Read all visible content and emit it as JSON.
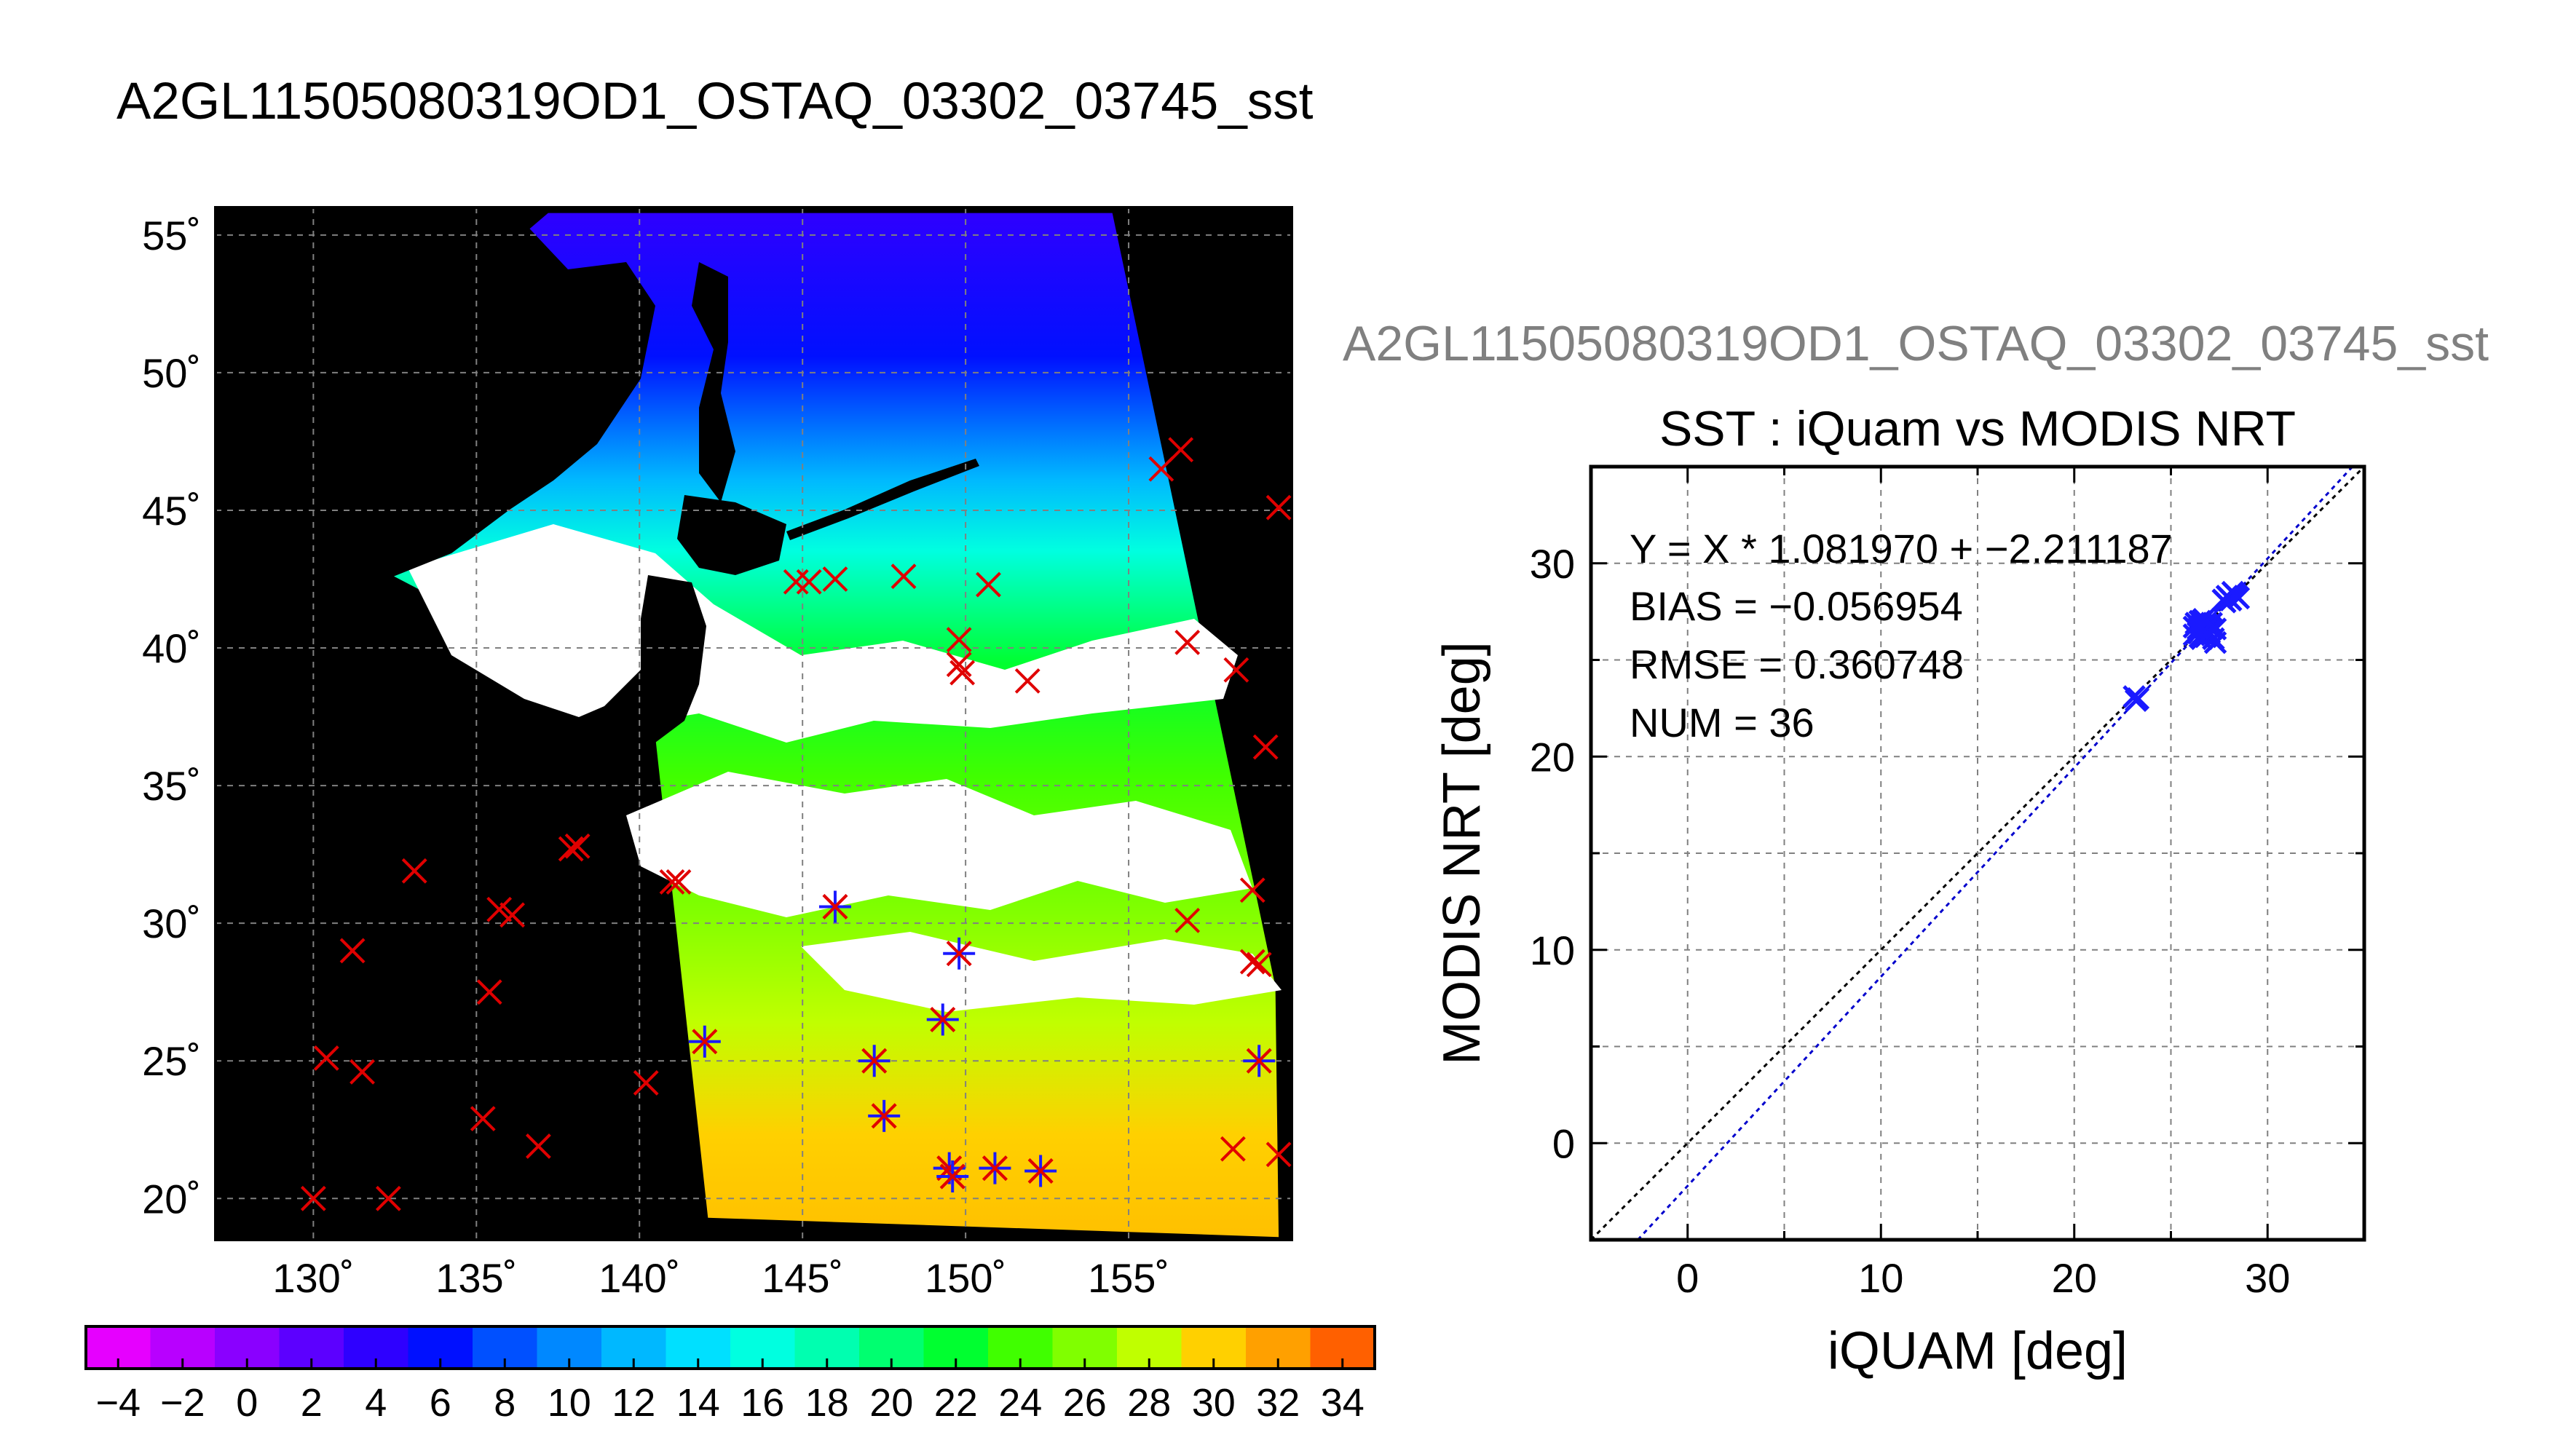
{
  "title": "A2GL11505080319OD1_OSTAQ_03302_03745_sst",
  "colors": {
    "background": "#ffffff",
    "land": "#000000",
    "cloud": "#ffffff",
    "insitu_marker": "#e00000",
    "matchup_marker": "#1a1aff",
    "fit_line": "#0000cc",
    "identity_line": "#000000",
    "grid": "#7f7f7f"
  },
  "chart_data": [
    {
      "type": "heatmap",
      "description_kind": "sst-map",
      "xlabel": "",
      "ylabel": "",
      "xlim": [
        127,
        160
      ],
      "ylim": [
        18.5,
        56
      ],
      "x_ticks": [
        130,
        135,
        140,
        145,
        150,
        155
      ],
      "y_ticks": [
        20,
        25,
        30,
        35,
        40,
        45,
        50,
        55
      ],
      "x_tick_labels": [
        "130˚",
        "135˚",
        "140˚",
        "145˚",
        "150˚",
        "155˚"
      ],
      "y_tick_labels": [
        "20˚",
        "25˚",
        "30˚",
        "35˚",
        "40˚",
        "45˚",
        "50˚",
        "55˚"
      ],
      "grid": true,
      "swath": [
        [
          127.3,
          45.8
        ],
        [
          140.4,
          37.7
        ],
        [
          142.1,
          19.3
        ],
        [
          159.6,
          18.6
        ],
        [
          159.5,
          27.7
        ],
        [
          154.5,
          55.8
        ],
        [
          137.2,
          55.8
        ]
      ],
      "colorbar": {
        "min": -5,
        "max": 35,
        "step": 2,
        "tick_values": [
          -4,
          -2,
          0,
          2,
          4,
          6,
          8,
          10,
          12,
          14,
          16,
          18,
          20,
          22,
          24,
          26,
          28,
          30,
          32,
          34
        ],
        "tick_labels": [
          "−4",
          "−2",
          "0",
          "2",
          "4",
          "6",
          "8",
          "10",
          "12",
          "14",
          "16",
          "18",
          "20",
          "22",
          "24",
          "26",
          "28",
          "30",
          "32",
          "34"
        ],
        "colors": [
          "#e600ff",
          "#b800ff",
          "#8a00ff",
          "#5c00ff",
          "#2e00ff",
          "#0010ff",
          "#0050ff",
          "#0088ff",
          "#00b8ff",
          "#00e0ff",
          "#00ffe0",
          "#00ffb0",
          "#00ff70",
          "#00ff30",
          "#40ff00",
          "#80ff00",
          "#c0ff00",
          "#ffd000",
          "#ffa000",
          "#ff6000",
          "#ff2000"
        ]
      },
      "insitu_points": [
        [
          130,
          20
        ],
        [
          130.4,
          25.1
        ],
        [
          131.2,
          29
        ],
        [
          131.5,
          24.6
        ],
        [
          132.3,
          20
        ],
        [
          133.1,
          31.9
        ],
        [
          135.2,
          22.9
        ],
        [
          135.4,
          27.5
        ],
        [
          135.7,
          30.5
        ],
        [
          136.1,
          30.3
        ],
        [
          136.9,
          21.9
        ],
        [
          137.9,
          32.7
        ],
        [
          138.1,
          32.8
        ],
        [
          140.2,
          24.2
        ],
        [
          141,
          31.5
        ],
        [
          141.2,
          31.5
        ],
        [
          142,
          25.7
        ],
        [
          144.8,
          42.4
        ],
        [
          145.2,
          42.4
        ],
        [
          146,
          42.5
        ],
        [
          146,
          30.6
        ],
        [
          147.2,
          25
        ],
        [
          147.5,
          23
        ],
        [
          148.1,
          42.6
        ],
        [
          149.3,
          26.5
        ],
        [
          149.5,
          21.1
        ],
        [
          149.6,
          20.8
        ],
        [
          149.8,
          28.9
        ],
        [
          149.8,
          40.3
        ],
        [
          149.8,
          39.4
        ],
        [
          149.9,
          39.1
        ],
        [
          150.7,
          42.3
        ],
        [
          150.9,
          21.1
        ],
        [
          152.3,
          21
        ],
        [
          151.9,
          38.8
        ],
        [
          156,
          46.5
        ],
        [
          156.6,
          47.2
        ],
        [
          156.8,
          40.2
        ],
        [
          156.8,
          30.1
        ],
        [
          158.3,
          39.2
        ],
        [
          158.2,
          21.8
        ],
        [
          158.8,
          31.2
        ],
        [
          158.8,
          28.6
        ],
        [
          159,
          28.5
        ],
        [
          159,
          25
        ],
        [
          159.2,
          36.4
        ],
        [
          159.6,
          45.1
        ],
        [
          159.6,
          21.6
        ]
      ],
      "matchup_points": [
        [
          142,
          25.7
        ],
        [
          146,
          30.6
        ],
        [
          147.2,
          25
        ],
        [
          147.5,
          23
        ],
        [
          149.3,
          26.5
        ],
        [
          149.5,
          21.1
        ],
        [
          149.6,
          20.8
        ],
        [
          149.8,
          28.9
        ],
        [
          150.9,
          21.1
        ],
        [
          152.3,
          21
        ],
        [
          159,
          25
        ]
      ]
    },
    {
      "type": "scatter",
      "subtitle": "A2GL11505080319OD1_OSTAQ_03302_03745_sst",
      "title": "SST : iQuam vs MODIS NRT",
      "xlabel": "iQUAM [deg]",
      "ylabel": "MODIS NRT [deg]",
      "xlim": [
        -5,
        35
      ],
      "ylim": [
        -5,
        35
      ],
      "x_ticks": [
        0,
        10,
        20,
        30
      ],
      "y_ticks": [
        0,
        10,
        20,
        30
      ],
      "minor_step": 5,
      "grid": true,
      "annotations": [
        "Y = X * 1.081970 + −2.211187",
        "BIAS = −0.056954",
        "RMSE = 0.360748",
        "NUM = 36"
      ],
      "fit": {
        "slope": 1.08197,
        "intercept": -2.211187
      },
      "points": [
        [
          23.1,
          23.1
        ],
        [
          23.3,
          23
        ],
        [
          23.2,
          22.9
        ],
        [
          26.2,
          26.3
        ],
        [
          26.4,
          26.6
        ],
        [
          26.5,
          26.2
        ],
        [
          26.6,
          26.8
        ],
        [
          26.7,
          26.4
        ],
        [
          26.8,
          26.9
        ],
        [
          26.9,
          26.5
        ],
        [
          27,
          26.7
        ],
        [
          26.5,
          27
        ],
        [
          26.3,
          26.9
        ],
        [
          26.8,
          26.2
        ],
        [
          27.2,
          26.1
        ],
        [
          27.3,
          25.9
        ],
        [
          26.9,
          26.8
        ],
        [
          26.6,
          26.1
        ],
        [
          27.1,
          26.6
        ],
        [
          27,
          26.4
        ],
        [
          27.8,
          28
        ],
        [
          28,
          28.2
        ],
        [
          28.1,
          28.1
        ],
        [
          28.3,
          28.4
        ],
        [
          27.9,
          28.3
        ],
        [
          28.2,
          28.5
        ],
        [
          28.4,
          28.3
        ],
        [
          27.7,
          28.1
        ],
        [
          26.6,
          27
        ],
        [
          26.4,
          26.4
        ],
        [
          27.1,
          26.9
        ],
        [
          26.2,
          26.7
        ],
        [
          26.9,
          26.3
        ],
        [
          26.7,
          27.1
        ],
        [
          27.3,
          26.6
        ],
        [
          28.5,
          28.2
        ]
      ]
    }
  ]
}
